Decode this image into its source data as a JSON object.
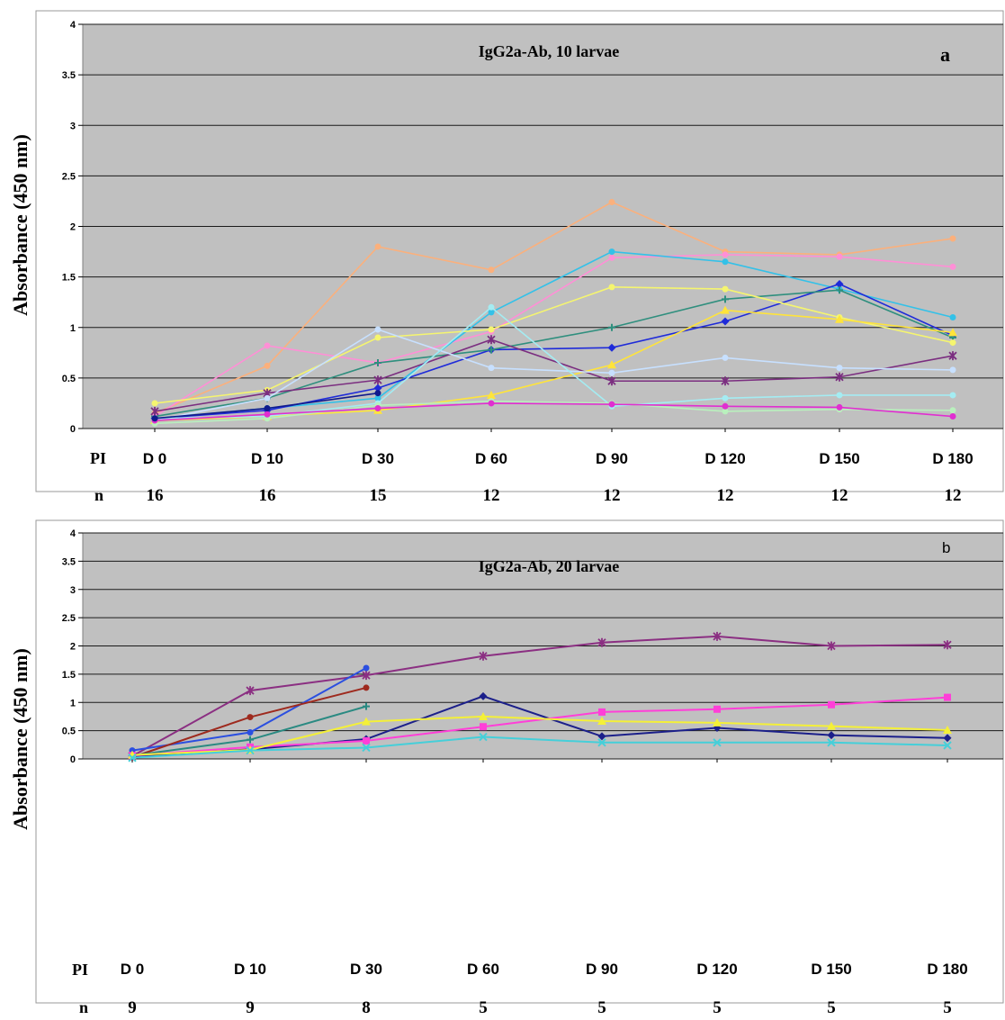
{
  "chart_data": [
    {
      "type": "line",
      "panel_letter": "a",
      "title": "IgG2a-Ab, 10 larvae",
      "ylabel": "Absorbance (450 nm)",
      "ylim": [
        0,
        4
      ],
      "yticks": [
        "0",
        "0.5",
        "1",
        "1.5",
        "2",
        "2.5",
        "3",
        "3.5",
        "4"
      ],
      "grid": true,
      "x_row_label": "PI",
      "n_row_label": "n",
      "categories": [
        "D 0",
        "D 10",
        "D 30",
        "D 60",
        "D 90",
        "D 120",
        "D 150",
        "D 180"
      ],
      "n_values": [
        "16",
        "16",
        "15",
        "12",
        "12",
        "12",
        "12",
        "12"
      ],
      "series": [
        {
          "color": "#fbb07c",
          "marker": "dot",
          "values": [
            0.15,
            0.62,
            1.8,
            1.57,
            2.24,
            1.75,
            1.72,
            1.88
          ]
        },
        {
          "color": "#ff8fd6",
          "marker": "dot",
          "values": [
            0.12,
            0.82,
            0.65,
            0.96,
            1.69,
            1.72,
            1.7,
            1.6
          ]
        },
        {
          "color": "#33c1e8",
          "marker": "dot",
          "values": [
            0.1,
            0.2,
            0.3,
            1.15,
            1.75,
            1.65,
            1.38,
            1.1
          ]
        },
        {
          "color": "#1f2bd9",
          "marker": "diamond",
          "values": [
            0.1,
            0.18,
            0.4,
            0.78,
            0.8,
            1.06,
            1.43,
            0.92
          ]
        },
        {
          "color": "#2f8f7e",
          "marker": "plus",
          "values": [
            0.12,
            0.3,
            0.65,
            0.78,
            1.0,
            1.28,
            1.37,
            0.9
          ]
        },
        {
          "color": "#f5f56f",
          "marker": "dot",
          "values": [
            0.25,
            0.38,
            0.9,
            0.98,
            1.4,
            1.38,
            1.1,
            0.85
          ]
        },
        {
          "color": "#ffe43a",
          "marker": "triangle",
          "values": [
            0.08,
            0.12,
            0.18,
            0.33,
            0.63,
            1.17,
            1.08,
            0.95
          ]
        },
        {
          "color": "#7b2e80",
          "marker": "star",
          "values": [
            0.17,
            0.35,
            0.48,
            0.88,
            0.47,
            0.47,
            0.51,
            0.72
          ]
        },
        {
          "color": "#c7e0ff",
          "marker": "dot",
          "values": [
            0.08,
            0.3,
            0.98,
            0.6,
            0.55,
            0.7,
            0.6,
            0.58
          ]
        },
        {
          "color": "#a4ecf2",
          "marker": "dot",
          "values": [
            0.1,
            0.12,
            0.25,
            1.2,
            0.22,
            0.3,
            0.33,
            0.33
          ]
        },
        {
          "color": "#b9f0bd",
          "marker": "dot",
          "values": [
            0.05,
            0.1,
            0.23,
            0.27,
            0.25,
            0.17,
            0.19,
            0.18
          ]
        },
        {
          "color": "#e02fd0",
          "marker": "dot",
          "values": [
            0.08,
            0.14,
            0.2,
            0.25,
            0.24,
            0.22,
            0.21,
            0.12
          ]
        },
        {
          "color": "#101a8c",
          "marker": "dot",
          "values": [
            0.1,
            0.2,
            0.35,
            null,
            null,
            null,
            null,
            null
          ]
        }
      ]
    },
    {
      "type": "line",
      "panel_letter": "b",
      "title": "IgG2a-Ab, 20 larvae",
      "ylabel": "Absorbance (450 nm)",
      "ylim": [
        0,
        4
      ],
      "yticks": [
        "0",
        "0.5",
        "1",
        "1.5",
        "2",
        "2.5",
        "3",
        "3.5",
        "4"
      ],
      "grid": true,
      "x_row_label": "PI",
      "n_row_label": "n",
      "categories": [
        "D 0",
        "D 10",
        "D 30",
        "D 60",
        "D 90",
        "D 120",
        "D 150",
        "D 180"
      ],
      "n_values": [
        "9",
        "9",
        "8",
        "5",
        "5",
        "5",
        "5",
        "5"
      ],
      "series": [
        {
          "color": "#8b2f82",
          "marker": "star",
          "values": [
            0.05,
            1.21,
            1.48,
            1.82,
            2.06,
            2.17,
            2.0,
            2.02
          ]
        },
        {
          "color": "#2b4fe0",
          "marker": "dot",
          "values": [
            0.15,
            0.47,
            1.61,
            null,
            null,
            null,
            null,
            null
          ]
        },
        {
          "color": "#9e2a1e",
          "marker": "dot",
          "values": [
            0.03,
            0.74,
            1.26,
            null,
            null,
            null,
            null,
            null
          ]
        },
        {
          "color": "#2a8a82",
          "marker": "plus",
          "values": [
            0.06,
            0.34,
            0.93,
            null,
            null,
            null,
            null,
            null
          ]
        },
        {
          "color": "#1b1f8a",
          "marker": "diamond",
          "values": [
            0.05,
            0.17,
            0.35,
            1.11,
            0.4,
            0.55,
            0.42,
            0.37
          ]
        },
        {
          "color": "#ff3fd8",
          "marker": "square",
          "values": [
            0.06,
            0.21,
            0.32,
            0.57,
            0.83,
            0.88,
            0.96,
            1.09
          ]
        },
        {
          "color": "#f4f038",
          "marker": "triangle",
          "values": [
            0.07,
            0.16,
            0.66,
            0.75,
            0.67,
            0.64,
            0.58,
            0.51
          ]
        },
        {
          "color": "#45cfd9",
          "marker": "x",
          "values": [
            0.02,
            0.15,
            0.2,
            0.39,
            0.29,
            0.29,
            0.29,
            0.24
          ]
        }
      ]
    }
  ]
}
